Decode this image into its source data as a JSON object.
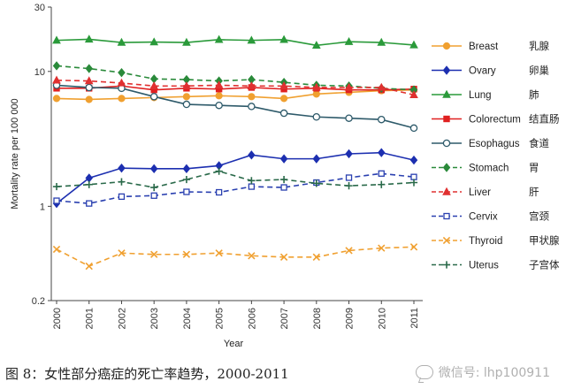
{
  "chart_data": {
    "type": "line",
    "title": "",
    "xlabel": "Year",
    "ylabel": "Mortality rate per 100 000",
    "yscale": "log",
    "ylim": [
      0.2,
      30
    ],
    "yticks": [
      0.2,
      1,
      10,
      30
    ],
    "ytick_labels": [
      "0.2",
      "1",
      "10",
      "30"
    ],
    "x": [
      "2000",
      "2001",
      "2002",
      "2003",
      "2004",
      "2005",
      "2006",
      "2007",
      "2008",
      "2009",
      "2010",
      "2011"
    ],
    "series": [
      {
        "name": "Breast",
        "zh": "乳腺",
        "color": "#f0a030",
        "dash": "solid",
        "marker": "circle-filled",
        "values": [
          6.3,
          6.2,
          6.3,
          6.4,
          6.5,
          6.6,
          6.5,
          6.3,
          6.8,
          7.0,
          7.2,
          7.3
        ]
      },
      {
        "name": "Ovary",
        "zh": "卵巢",
        "color": "#1c2fb0",
        "dash": "solid",
        "marker": "diamond-filled",
        "values": [
          1.05,
          1.62,
          1.92,
          1.9,
          1.9,
          2.0,
          2.4,
          2.25,
          2.25,
          2.45,
          2.5,
          2.2
        ]
      },
      {
        "name": "Lung",
        "zh": "肺",
        "color": "#2a9a3a",
        "dash": "solid",
        "marker": "triangle-filled",
        "values": [
          17.0,
          17.3,
          16.4,
          16.5,
          16.4,
          17.2,
          17.0,
          17.2,
          15.6,
          16.6,
          16.4,
          15.7
        ]
      },
      {
        "name": "Colorectum",
        "zh": "结直肠",
        "color": "#e02020",
        "dash": "solid",
        "marker": "square-filled",
        "values": [
          7.5,
          7.5,
          7.8,
          7.3,
          7.5,
          7.4,
          7.6,
          7.4,
          7.5,
          7.3,
          7.3,
          7.4
        ]
      },
      {
        "name": "Esophagus",
        "zh": "食道",
        "color": "#2e5a6a",
        "dash": "solid",
        "marker": "circle-open",
        "values": [
          7.9,
          7.6,
          7.5,
          6.5,
          5.7,
          5.6,
          5.5,
          4.9,
          4.6,
          4.5,
          4.4,
          3.8
        ]
      },
      {
        "name": "Stomach",
        "zh": "胃",
        "color": "#2a8a3a",
        "dash": "dash",
        "marker": "diamond-filled",
        "values": [
          11.0,
          10.5,
          9.8,
          8.8,
          8.7,
          8.5,
          8.7,
          8.3,
          7.9,
          7.8,
          7.5,
          7.3
        ]
      },
      {
        "name": "Liver",
        "zh": "肝",
        "color": "#e03030",
        "dash": "dash",
        "marker": "triangle-filled",
        "values": [
          8.6,
          8.5,
          8.2,
          7.8,
          7.8,
          7.9,
          7.8,
          7.8,
          7.6,
          7.6,
          7.6,
          6.7
        ]
      },
      {
        "name": "Cervix",
        "zh": "宫颈",
        "color": "#2a40b0",
        "dash": "dash",
        "marker": "square-open",
        "values": [
          1.1,
          1.05,
          1.18,
          1.2,
          1.28,
          1.27,
          1.4,
          1.38,
          1.5,
          1.63,
          1.75,
          1.65
        ]
      },
      {
        "name": "Thyroid",
        "zh": "甲状腺",
        "color": "#f0a030",
        "dash": "dash",
        "marker": "x",
        "values": [
          0.48,
          0.36,
          0.45,
          0.44,
          0.44,
          0.45,
          0.43,
          0.42,
          0.42,
          0.47,
          0.49,
          0.5
        ]
      },
      {
        "name": "Uterus",
        "zh": "子宫体",
        "color": "#2a6a4a",
        "dash": "dash",
        "marker": "plus",
        "values": [
          1.4,
          1.45,
          1.52,
          1.38,
          1.58,
          1.82,
          1.55,
          1.58,
          1.48,
          1.42,
          1.45,
          1.5
        ]
      }
    ]
  },
  "caption": "图 8：女性部分癌症的死亡率趋势，2000-2011",
  "watermark": "微信号: lhp100911"
}
